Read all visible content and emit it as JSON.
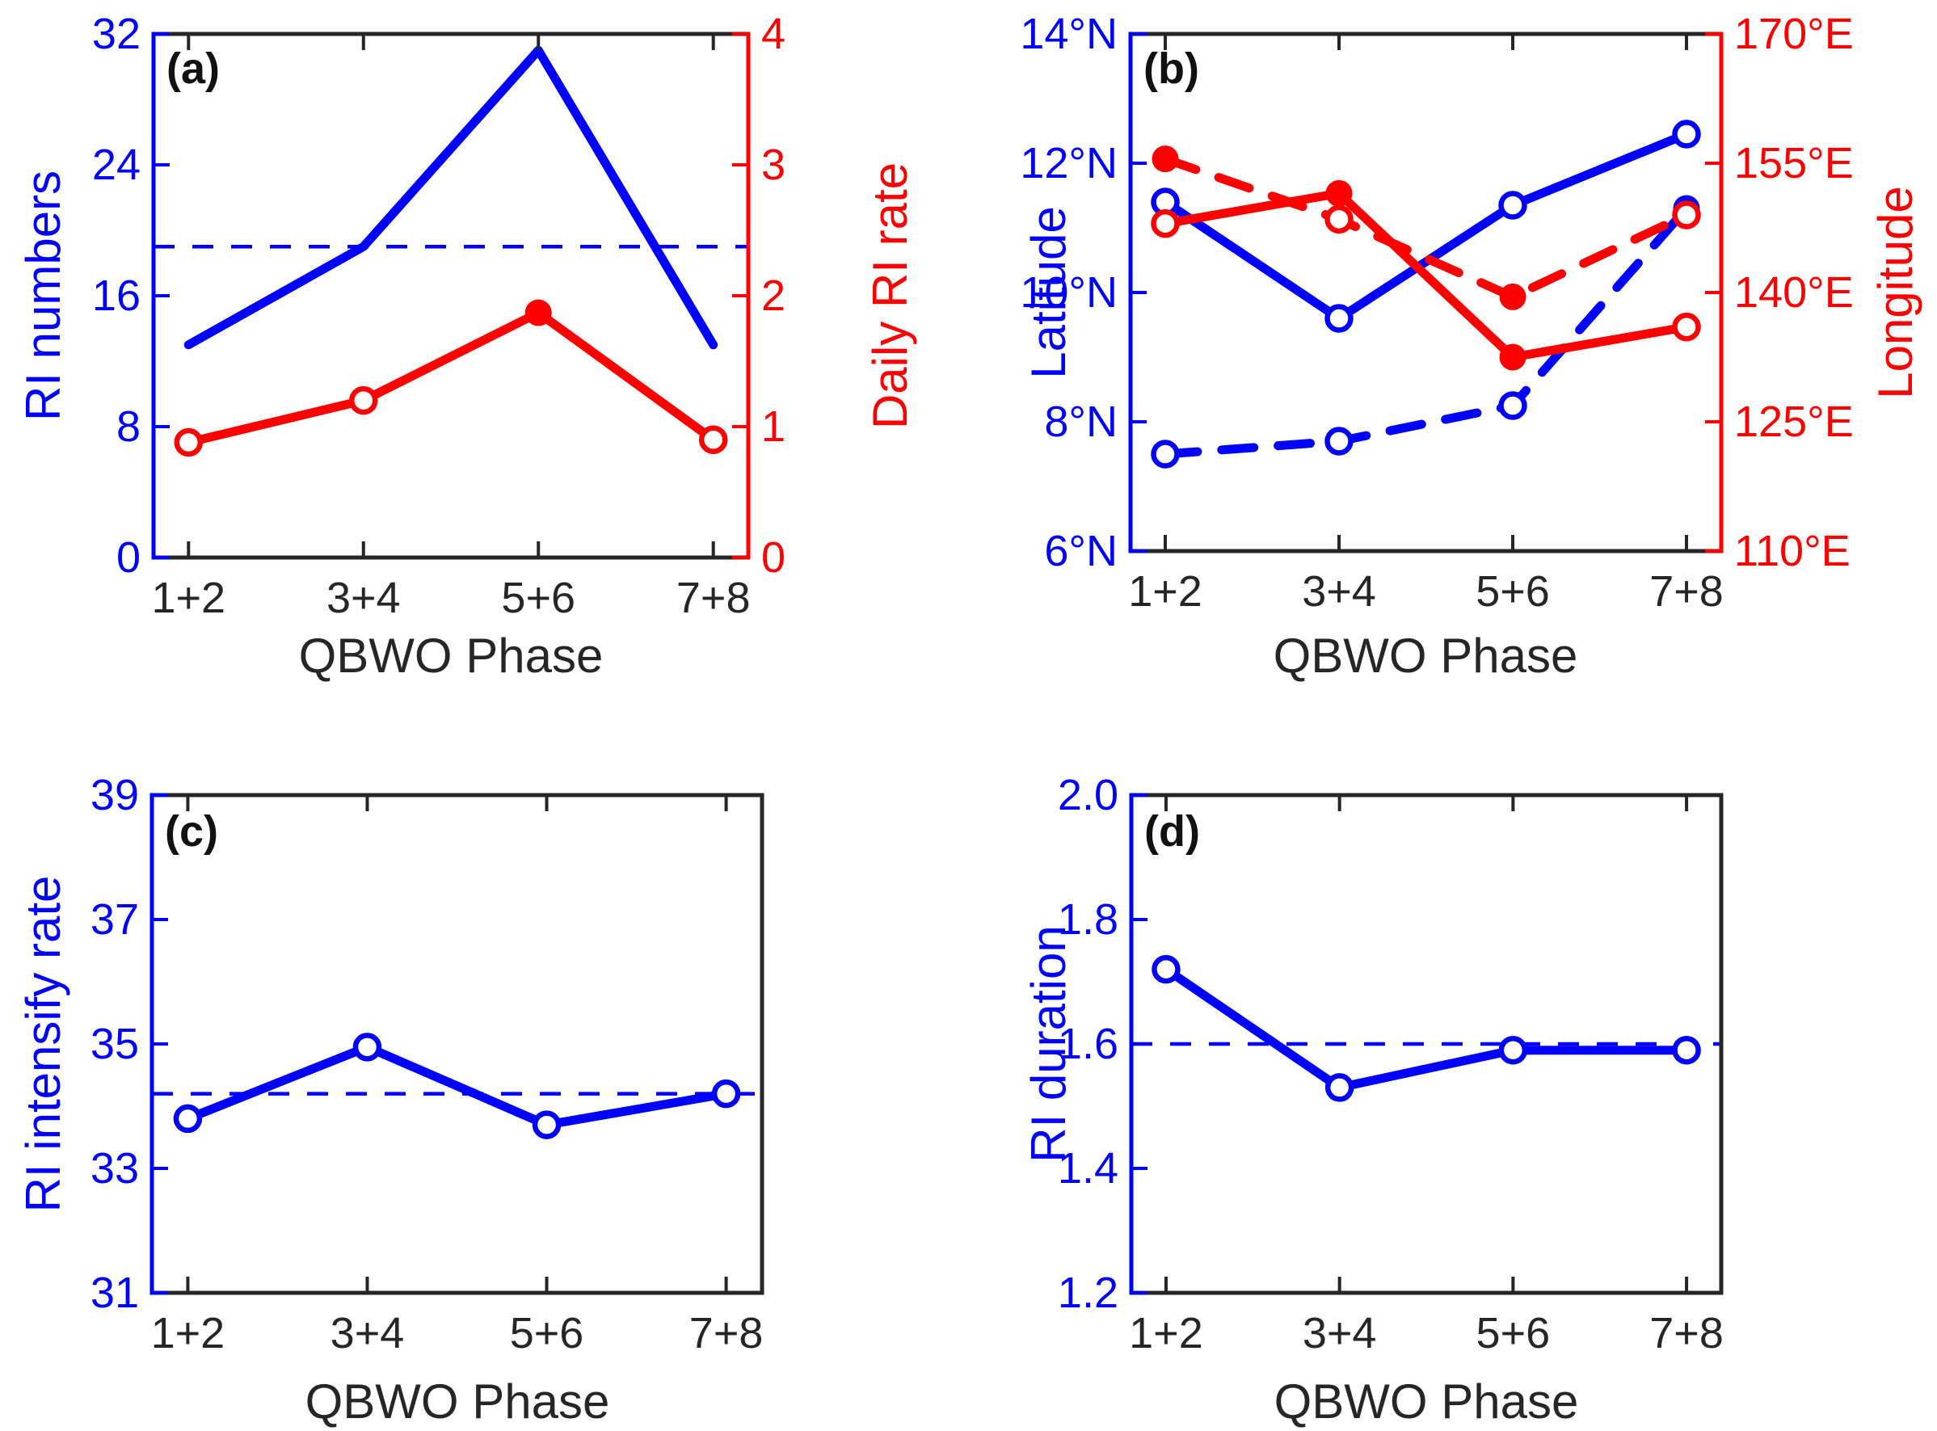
{
  "figure": {
    "background": "#ffffff",
    "colors": {
      "blue": "#0000FF",
      "red": "#FF0000",
      "axis_black": "#262626"
    },
    "x_tick_labels": [
      "1+2",
      "3+4",
      "5+6",
      "7+8"
    ],
    "xlabel": "QBWO Phase"
  },
  "chart_data": [
    {
      "panel": "a",
      "type": "line",
      "title": "(a)",
      "xlabel": "QBWO Phase",
      "categories": [
        "1+2",
        "3+4",
        "5+6",
        "7+8"
      ],
      "xlim": [
        0.8,
        4.2
      ],
      "grid": false,
      "left_axis": {
        "label": "RI numbers",
        "color": "#0000FF",
        "ylim": [
          0,
          32
        ],
        "ticks": [
          0,
          8,
          16,
          24,
          32
        ],
        "tick_labels": [
          "0",
          "8",
          "16",
          "24",
          "32"
        ]
      },
      "right_axis": {
        "label": "Daily RI rate",
        "color": "#FF0000",
        "ylim": [
          0,
          4
        ],
        "ticks": [
          0,
          1,
          2,
          3,
          4
        ],
        "tick_labels": [
          "0",
          "1",
          "2",
          "3",
          "4"
        ]
      },
      "series": [
        {
          "name": "RI numbers",
          "axis": "left",
          "color": "#0000FF",
          "style": "solid",
          "values": [
            13,
            19,
            31,
            13
          ],
          "markers": [
            "none",
            "none",
            "none",
            "none"
          ]
        },
        {
          "name": "Daily RI rate",
          "axis": "right",
          "color": "#FF0000",
          "style": "solid",
          "values": [
            0.88,
            1.2,
            1.87,
            0.9
          ],
          "markers": [
            "open",
            "open",
            "filled",
            "open"
          ]
        }
      ],
      "mean_lines": [
        {
          "axis": "left",
          "value": 19,
          "color": "#0000FF"
        }
      ]
    },
    {
      "panel": "b",
      "type": "line",
      "title": "(b)",
      "xlabel": "QBWO Phase",
      "categories": [
        "1+2",
        "3+4",
        "5+6",
        "7+8"
      ],
      "xlim": [
        0.8,
        4.2
      ],
      "grid": false,
      "left_axis": {
        "label": "Latitude",
        "color": "#0000FF",
        "ylim": [
          6,
          14
        ],
        "ticks": [
          6,
          8,
          10,
          12,
          14
        ],
        "tick_labels": [
          "6°N",
          "8°N",
          "10°N",
          "12°N",
          "14°N"
        ]
      },
      "right_axis": {
        "label": "Longitude",
        "color": "#FF0000",
        "ylim": [
          110,
          170
        ],
        "ticks": [
          110,
          125,
          140,
          155,
          170
        ],
        "tick_labels": [
          "110°E",
          "125°E",
          "140°E",
          "155°E",
          "170°E"
        ]
      },
      "series": [
        {
          "name": "Latitude solid",
          "axis": "left",
          "color": "#0000FF",
          "style": "solid",
          "values": [
            11.4,
            9.6,
            11.35,
            12.45
          ],
          "markers": [
            "open",
            "open",
            "open",
            "open"
          ]
        },
        {
          "name": "Latitude dashed",
          "axis": "left",
          "color": "#0000FF",
          "style": "dashed",
          "values": [
            7.5,
            7.7,
            8.25,
            11.3
          ],
          "markers": [
            "open",
            "open",
            "open",
            "filled"
          ]
        },
        {
          "name": "Longitude solid",
          "axis": "right",
          "color": "#FF0000",
          "style": "solid",
          "values": [
            148,
            151.5,
            132.5,
            136
          ],
          "markers": [
            "open",
            "filled",
            "filled",
            "open"
          ]
        },
        {
          "name": "Longitude dashed",
          "axis": "right",
          "color": "#FF0000",
          "style": "dashed",
          "values": [
            155.5,
            148.5,
            139.5,
            149
          ],
          "markers": [
            "filled",
            "open",
            "filled",
            "open"
          ]
        }
      ],
      "mean_lines": []
    },
    {
      "panel": "c",
      "type": "line",
      "title": "(c)",
      "xlabel": "QBWO Phase",
      "categories": [
        "1+2",
        "3+4",
        "5+6",
        "7+8"
      ],
      "xlim": [
        0.8,
        4.2
      ],
      "grid": false,
      "left_axis": {
        "label": "RI intensify rate",
        "color": "#0000FF",
        "ylim": [
          31,
          39
        ],
        "ticks": [
          31,
          33,
          35,
          37,
          39
        ],
        "tick_labels": [
          "31",
          "33",
          "35",
          "37",
          "39"
        ]
      },
      "right_axis": null,
      "series": [
        {
          "name": "RI intensify rate",
          "axis": "left",
          "color": "#0000FF",
          "style": "solid",
          "values": [
            33.8,
            34.95,
            33.7,
            34.2
          ],
          "markers": [
            "open",
            "open",
            "open",
            "open"
          ]
        }
      ],
      "mean_lines": [
        {
          "axis": "left",
          "value": 34.2,
          "color": "#0000FF"
        }
      ]
    },
    {
      "panel": "d",
      "type": "line",
      "title": "(d)",
      "xlabel": "QBWO Phase",
      "categories": [
        "1+2",
        "3+4",
        "5+6",
        "7+8"
      ],
      "xlim": [
        0.8,
        4.2
      ],
      "grid": false,
      "left_axis": {
        "label": "RI duration",
        "color": "#0000FF",
        "ylim": [
          1.2,
          2.0
        ],
        "ticks": [
          1.2,
          1.4,
          1.6,
          1.8,
          2.0
        ],
        "tick_labels": [
          "1.2",
          "1.4",
          "1.6",
          "1.8",
          "2.0"
        ]
      },
      "right_axis": null,
      "series": [
        {
          "name": "RI duration",
          "axis": "left",
          "color": "#0000FF",
          "style": "solid",
          "values": [
            1.72,
            1.53,
            1.59,
            1.59
          ],
          "markers": [
            "open",
            "open",
            "open",
            "open"
          ]
        }
      ],
      "mean_lines": [
        {
          "axis": "left",
          "value": 1.6,
          "color": "#0000FF"
        }
      ]
    }
  ]
}
